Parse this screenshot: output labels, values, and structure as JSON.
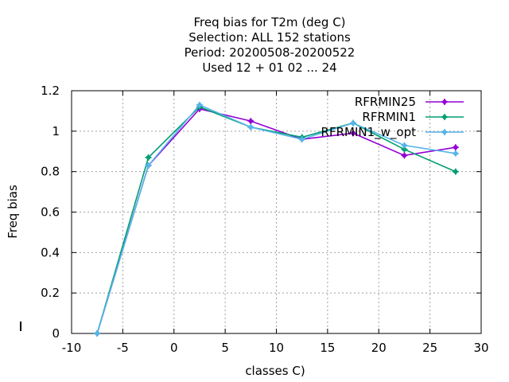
{
  "chart_data": {
    "type": "line",
    "title_lines": [
      "Freq bias  for T2m (deg C)",
      "Selection: ALL    152 stations",
      "Period: 20200508-20200522",
      "Used  12 + 01 02 ... 24"
    ],
    "xlabel": "classes C)",
    "ylabel": "Freq bias",
    "xlim": [
      -10,
      30
    ],
    "ylim": [
      0,
      1.2
    ],
    "xticks": [
      -10,
      -5,
      0,
      5,
      10,
      15,
      20,
      25,
      30
    ],
    "xtick_labels": [
      "-10",
      "-5",
      "0",
      "5",
      "10",
      "15",
      "20",
      "25",
      "30"
    ],
    "yticks": [
      0,
      0.2,
      0.4,
      0.6,
      0.8,
      1,
      1.2
    ],
    "ytick_labels": [
      "0",
      "0.2",
      "0.4",
      "0.6",
      "0.8",
      "1",
      "1.2"
    ],
    "grid": true,
    "legend_position": "top-right",
    "x": [
      -7.5,
      -2.5,
      2.5,
      7.5,
      12.5,
      17.5,
      22.5,
      27.5
    ],
    "series": [
      {
        "name": "RFRMIN25",
        "color": "#9400d3",
        "values": [
          0.0,
          0.83,
          1.11,
          1.05,
          0.96,
          0.99,
          0.88,
          0.92
        ]
      },
      {
        "name": "RFRMIN1",
        "color": "#009e73",
        "values": [
          0.0,
          0.87,
          1.12,
          1.02,
          0.97,
          1.04,
          0.91,
          0.8
        ]
      },
      {
        "name": "RFRMIN1_w_opt",
        "color": "#56b4e9",
        "values": [
          0.0,
          0.83,
          1.13,
          1.02,
          0.96,
          1.04,
          0.93,
          0.89
        ]
      }
    ]
  }
}
